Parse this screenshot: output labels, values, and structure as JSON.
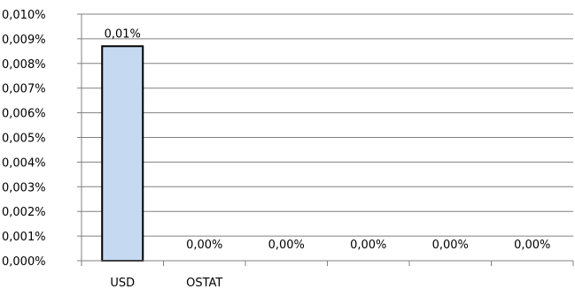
{
  "chart_data": {
    "type": "bar",
    "categories": [
      "USD",
      "OSTAT",
      "",
      "",
      "",
      ""
    ],
    "values": [
      0.0087,
      0.0,
      0.0,
      0.0,
      0.0,
      0.0
    ],
    "data_labels": [
      "0,01%",
      "0,00%",
      "0,00%",
      "0,00%",
      "0,00%",
      "0,00%"
    ],
    "yticks": [
      "0,000%",
      "0,001%",
      "0,002%",
      "0,003%",
      "0,004%",
      "0,005%",
      "0,006%",
      "0,007%",
      "0,008%",
      "0,009%",
      "0,010%"
    ],
    "ylim": [
      0,
      0.01
    ],
    "grid": true,
    "title": "",
    "xlabel": "",
    "ylabel": "",
    "colors": {
      "bar_fill": "#c5d9f1",
      "bar_stroke": "#000000",
      "grid": "#808080",
      "axis": "#808080"
    }
  }
}
